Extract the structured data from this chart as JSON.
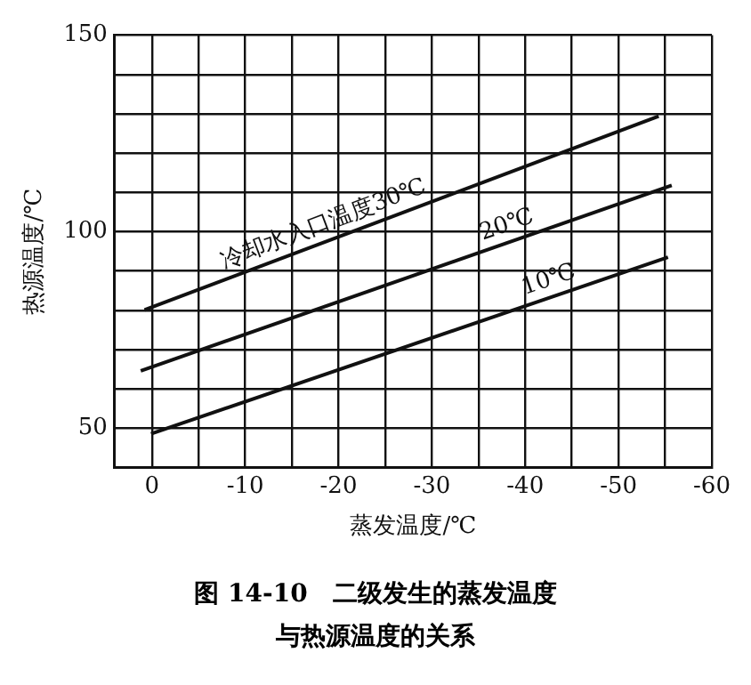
{
  "chart_data": {
    "type": "line",
    "title": "图 14-10　二级发生的蒸发温度与热源温度的关系",
    "xlabel": "蒸发温度/℃",
    "ylabel": "热源温度/℃",
    "series": [
      {
        "name": "冷却水入口温度30℃",
        "color": "#111111",
        "x": [
          0.8,
          -54.3
        ],
        "values": [
          80.1,
          129.4
        ]
      },
      {
        "name": "20℃",
        "color": "#111111",
        "x": [
          1.2,
          -55.7
        ],
        "values": [
          64.6,
          111.8
        ]
      },
      {
        "name": "10℃",
        "color": "#111111",
        "x": [
          0.1,
          -55.3
        ],
        "values": [
          48.6,
          93.5
        ]
      }
    ],
    "xlim": [
      4,
      -60
    ],
    "xticks": [
      0,
      {
        "value": -5,
        "label": null
      },
      -10,
      {
        "value": -15,
        "label": null
      },
      -20,
      {
        "value": -25,
        "label": null
      },
      -30,
      {
        "value": -35,
        "label": null
      },
      -40,
      {
        "value": -45,
        "label": null
      },
      -50,
      {
        "value": -55,
        "label": null
      },
      -60
    ],
    "ylim": [
      40,
      150
    ],
    "yticks": [
      {
        "value": 40,
        "label": null
      },
      50,
      {
        "value": 60,
        "label": null
      },
      {
        "value": 70,
        "label": null
      },
      {
        "value": 80,
        "label": null
      },
      {
        "value": 90,
        "label": null
      },
      100,
      {
        "value": 110,
        "label": null
      },
      {
        "value": 120,
        "label": null
      },
      {
        "value": 130,
        "label": null
      },
      {
        "value": 140,
        "label": null
      },
      150
    ],
    "grid": true,
    "legend": false,
    "marker": "none",
    "line_style": "solid"
  }
}
